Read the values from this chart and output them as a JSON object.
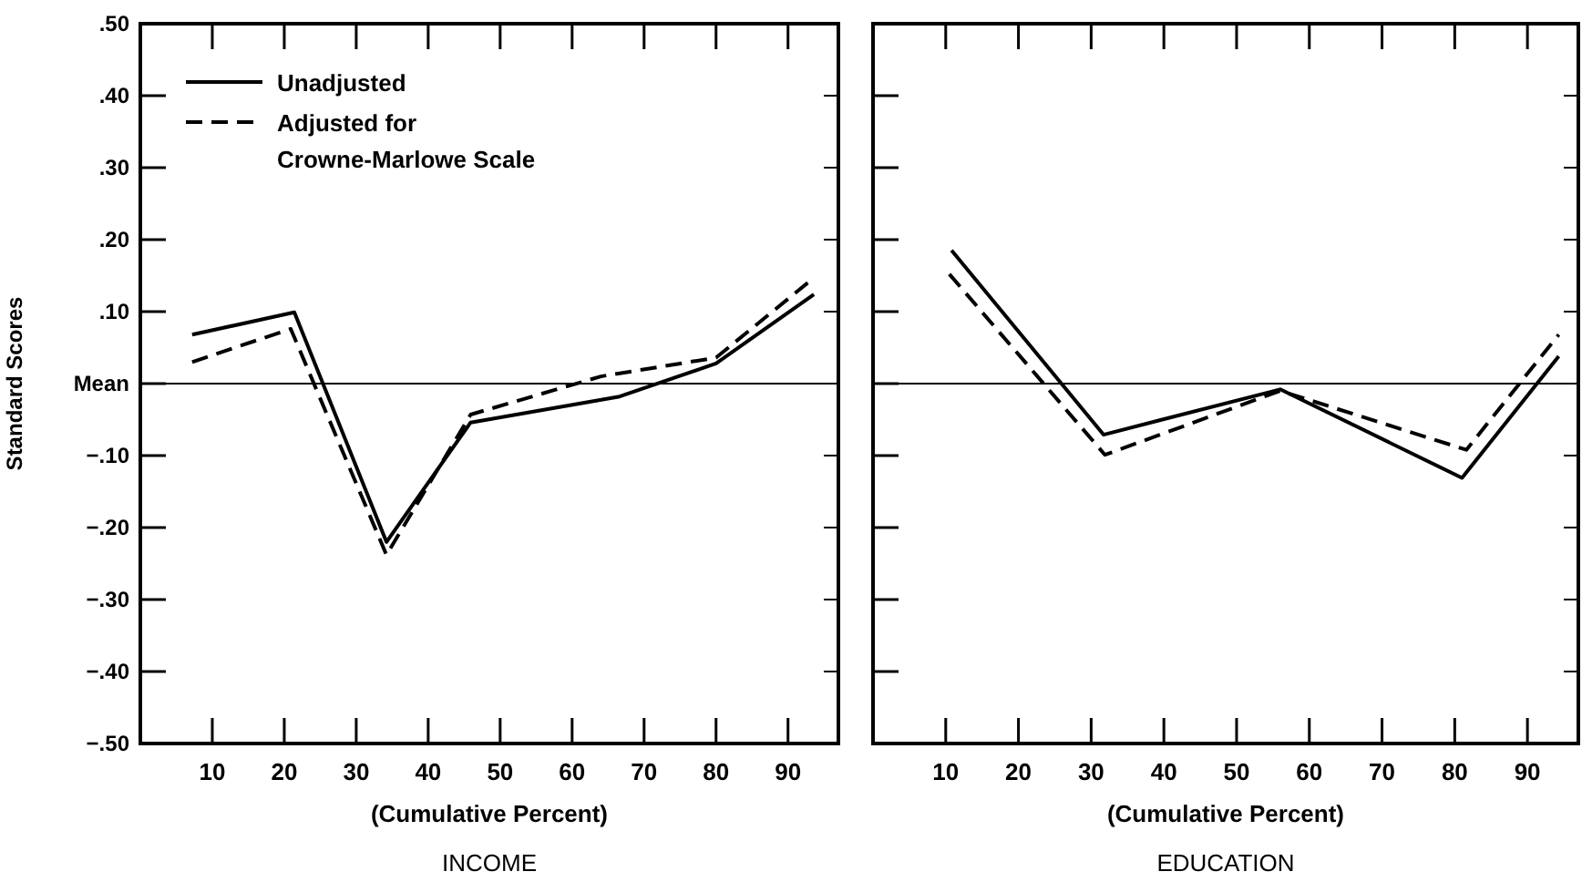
{
  "chart_data": [
    {
      "type": "line",
      "title": "INCOME",
      "xlabel": "(Cumulative Percent)",
      "ylabel": "Standard Scores",
      "xlim": [
        0,
        97
      ],
      "xticks": [
        10,
        20,
        30,
        40,
        50,
        60,
        70,
        80,
        90
      ],
      "ylim": [
        -0.5,
        0.5
      ],
      "yticks": [
        {
          "value": 0.5,
          "label": ".50"
        },
        {
          "value": 0.4,
          "label": ".40"
        },
        {
          "value": 0.3,
          "label": ".30"
        },
        {
          "value": 0.2,
          "label": ".20"
        },
        {
          "value": 0.1,
          "label": ".10"
        },
        {
          "value": 0,
          "label": "Mean"
        },
        {
          "value": -0.1,
          "label": "−.10"
        },
        {
          "value": -0.2,
          "label": "−.20"
        },
        {
          "value": -0.3,
          "label": "−.30"
        },
        {
          "value": -0.4,
          "label": "−.40"
        },
        {
          "value": -0.5,
          "label": "−.50"
        }
      ],
      "ref_lines": [
        {
          "axis": "y",
          "value": 0
        }
      ],
      "legend": "top left",
      "grid": false,
      "series": [
        {
          "name": "Unadjusted",
          "color": "#000000",
          "line_style": "solid",
          "x": [
            7.2,
            21.4,
            34.2,
            45.9,
            66.6,
            80,
            93.6
          ],
          "values": [
            0.068,
            0.099,
            -0.22,
            -0.054,
            -0.018,
            0.028,
            0.124
          ]
        },
        {
          "name": "Adjusted for Crowne-Marlowe Scale",
          "color": "#000000",
          "line_style": "dashed",
          "x": [
            7.2,
            20.9,
            34.2,
            45.9,
            64,
            80,
            93.6
          ],
          "values": [
            0.03,
            0.076,
            -0.238,
            -0.043,
            0.01,
            0.036,
            0.147
          ]
        }
      ]
    },
    {
      "type": "line",
      "title": "EDUCATION",
      "xlabel": "(Cumulative Percent)",
      "xlim": [
        0,
        97
      ],
      "xticks": [
        10,
        20,
        30,
        40,
        50,
        60,
        70,
        80,
        90
      ],
      "ylim": [
        -0.5,
        0.5
      ],
      "yticks": [
        {
          "value": 0.5,
          "label": null
        },
        {
          "value": 0.4,
          "label": null
        },
        {
          "value": 0.3,
          "label": null
        },
        {
          "value": 0.2,
          "label": null
        },
        {
          "value": 0.1,
          "label": null
        },
        {
          "value": 0,
          "label": null
        },
        {
          "value": -0.1,
          "label": null
        },
        {
          "value": -0.2,
          "label": null
        },
        {
          "value": -0.3,
          "label": null
        },
        {
          "value": -0.4,
          "label": null
        },
        {
          "value": -0.5,
          "label": null
        }
      ],
      "tick_labels": "x",
      "ref_lines": [
        {
          "axis": "y",
          "value": 0
        }
      ],
      "legend": false,
      "grid": false,
      "series": [
        {
          "color": "#000000",
          "line_style": "solid",
          "x": [
            10.8,
            31.7,
            56,
            81,
            94.3
          ],
          "values": [
            0.185,
            -0.071,
            -0.008,
            -0.131,
            0.038
          ]
        },
        {
          "color": "#000000",
          "line_style": "dashed",
          "x": [
            10.5,
            31.9,
            56,
            81.6,
            94.3
          ],
          "values": [
            0.152,
            -0.099,
            -0.01,
            -0.092,
            0.068
          ]
        }
      ]
    }
  ]
}
